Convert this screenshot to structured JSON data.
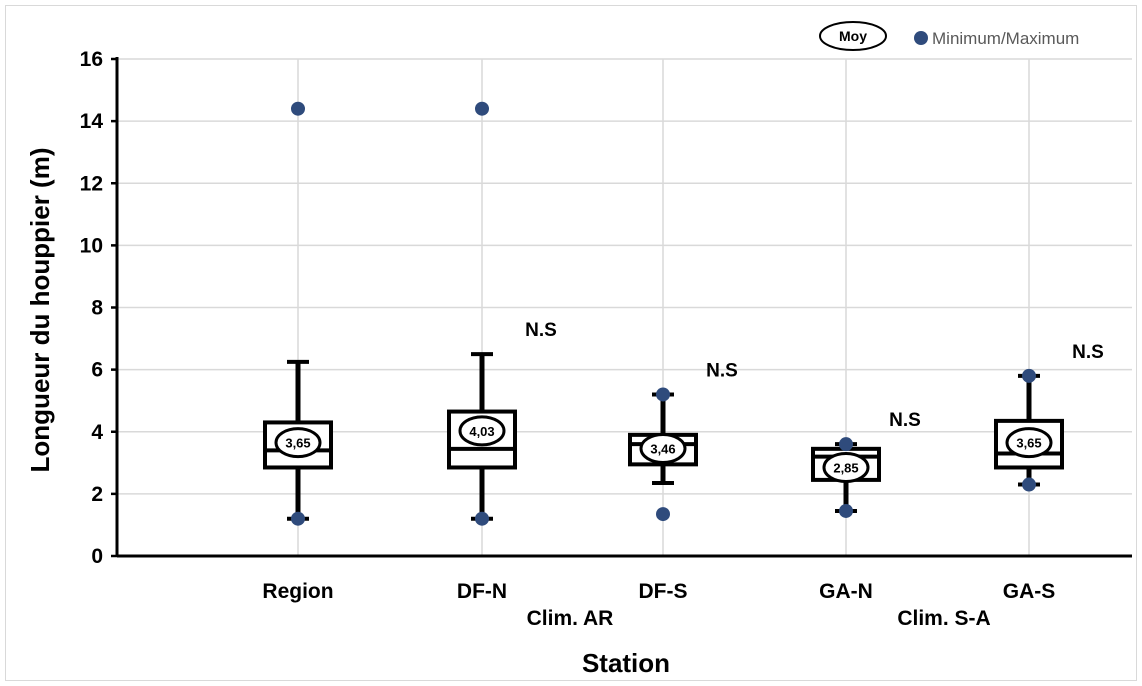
{
  "chart_data": {
    "type": "boxplot",
    "title": "",
    "ylabel": "Longueur du houppier (m)",
    "xlabel": "Station",
    "ylim": [
      0,
      16
    ],
    "yticks": [
      0,
      2,
      4,
      6,
      8,
      10,
      12,
      14,
      16
    ],
    "grid": true,
    "legend": {
      "position": "top-right",
      "mean_label": "Moy",
      "minmax_label": "Minimum/Maximum"
    },
    "colors": {
      "minmax": "#2f4b7c",
      "box": "#000000",
      "grid": "#d9d9d9"
    },
    "categories": [
      "Region",
      "DF-N",
      "DF-S",
      "GA-N",
      "GA-S"
    ],
    "groups": [
      "Clim. AR",
      "Clim. S-A"
    ],
    "boxes": [
      {
        "category": "Region",
        "min": 1.2,
        "max": 14.4,
        "whisker_low": 1.2,
        "whisker_high": 6.25,
        "q1": 2.85,
        "median": 3.4,
        "q3": 4.3,
        "mean": 3.65,
        "mean_label": "3,65",
        "significance": ""
      },
      {
        "category": "DF-N",
        "min": 1.2,
        "max": 14.4,
        "whisker_low": 1.2,
        "whisker_high": 6.5,
        "q1": 2.85,
        "median": 3.45,
        "q3": 4.65,
        "mean": 4.03,
        "mean_label": "4,03",
        "significance": "N.S"
      },
      {
        "category": "DF-S",
        "min": 1.35,
        "max": 5.2,
        "whisker_low": 2.35,
        "whisker_high": 5.2,
        "q1": 2.95,
        "median": 3.6,
        "q3": 3.9,
        "mean": 3.46,
        "mean_label": "3,46",
        "significance": "N.S"
      },
      {
        "category": "GA-N",
        "min": 1.45,
        "max": 3.6,
        "whisker_low": 1.45,
        "whisker_high": 3.6,
        "q1": 2.45,
        "median": 3.2,
        "q3": 3.45,
        "mean": 2.85,
        "mean_label": "2,85",
        "significance": "N.S"
      },
      {
        "category": "GA-S",
        "min": 2.3,
        "max": 5.8,
        "whisker_low": 2.3,
        "whisker_high": 5.8,
        "q1": 2.85,
        "median": 3.3,
        "q3": 4.35,
        "mean": 3.65,
        "mean_label": "3,65",
        "significance": "N.S"
      }
    ]
  }
}
